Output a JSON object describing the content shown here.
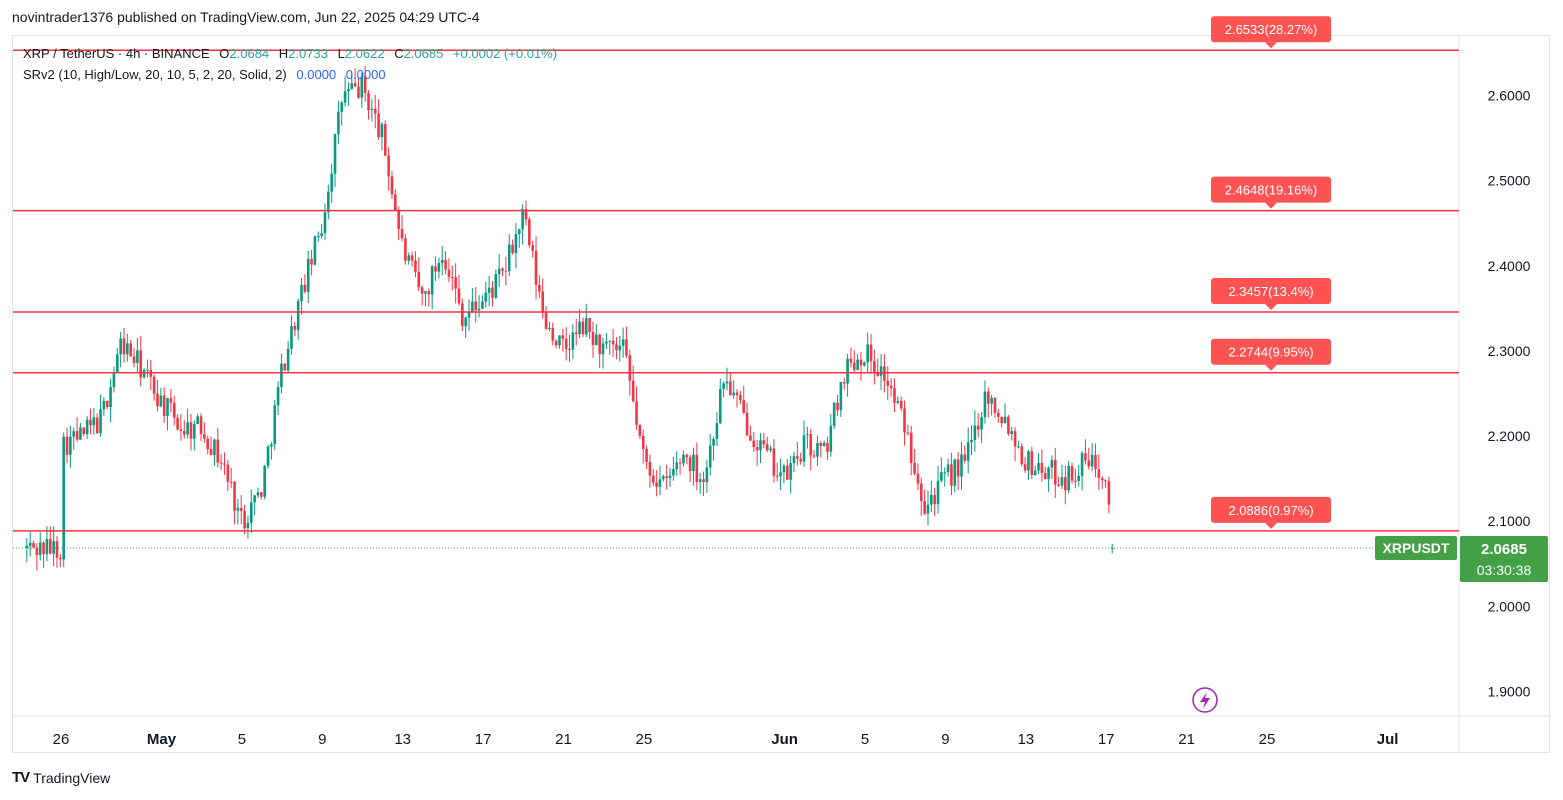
{
  "header": {
    "text": "novintrader1376 published on TradingView.com, Jun 22, 2025 04:29 UTC-4"
  },
  "legend": {
    "symbol": "XRP / TetherUS · 4h · BINANCE",
    "o_label": "O",
    "o_value": "2.0684",
    "h_label": "H",
    "h_value": "2.0733",
    "l_label": "L",
    "l_value": "2.0622",
    "c_label": "C",
    "c_value": "2.0685",
    "change": "+0.0002 (+0.01%)",
    "indicator": "SRv2 (10, High/Low, 20, 10, 5, 2, 20, Solid, 2)",
    "ind_value1": "0.0000",
    "ind_value2": "0.0000"
  },
  "footer": {
    "brand": "TradingView",
    "logo_text": "TV"
  },
  "chart_data": {
    "type": "candlestick",
    "symbol": "XRPUSDT",
    "timeframe": "4h",
    "y_axis": {
      "min": 1.85,
      "max": 2.67,
      "ticks": [
        "2.6000",
        "2.5000",
        "2.4000",
        "2.3000",
        "2.2000",
        "2.1000",
        "2.0000",
        "1.9000"
      ]
    },
    "x_axis": {
      "labels": [
        {
          "label": "26",
          "day": 0
        },
        {
          "label": "May",
          "day": 5
        },
        {
          "label": "5",
          "day": 9
        },
        {
          "label": "9",
          "day": 13
        },
        {
          "label": "13",
          "day": 17
        },
        {
          "label": "17",
          "day": 21
        },
        {
          "label": "21",
          "day": 25
        },
        {
          "label": "25",
          "day": 29
        },
        {
          "label": "Jun",
          "day": 36
        },
        {
          "label": "5",
          "day": 40
        },
        {
          "label": "9",
          "day": 44
        },
        {
          "label": "13",
          "day": 48
        },
        {
          "label": "17",
          "day": 52
        },
        {
          "label": "21",
          "day": 56
        },
        {
          "label": "25",
          "day": 60
        },
        {
          "label": "Jul",
          "day": 66
        }
      ]
    },
    "series_anchors_daily_close": [
      [
        0,
        2.19
      ],
      [
        1,
        2.2
      ],
      [
        2,
        2.22
      ],
      [
        3,
        2.31
      ],
      [
        4,
        2.28
      ],
      [
        5,
        2.24
      ],
      [
        6,
        2.21
      ],
      [
        7,
        2.21
      ],
      [
        8,
        2.17
      ],
      [
        9,
        2.1
      ],
      [
        10,
        2.14
      ],
      [
        11,
        2.28
      ],
      [
        12,
        2.37
      ],
      [
        13,
        2.45
      ],
      [
        14,
        2.6
      ],
      [
        15,
        2.61
      ],
      [
        16,
        2.55
      ],
      [
        17,
        2.42
      ],
      [
        18,
        2.36
      ],
      [
        19,
        2.42
      ],
      [
        20,
        2.34
      ],
      [
        21,
        2.36
      ],
      [
        22,
        2.39
      ],
      [
        23,
        2.46
      ],
      [
        24,
        2.34
      ],
      [
        25,
        2.3
      ],
      [
        26,
        2.33
      ],
      [
        27,
        2.3
      ],
      [
        28,
        2.3
      ],
      [
        29,
        2.17
      ],
      [
        30,
        2.14
      ],
      [
        31,
        2.18
      ],
      [
        32,
        2.15
      ],
      [
        33,
        2.27
      ],
      [
        34,
        2.22
      ],
      [
        35,
        2.18
      ],
      [
        36,
        2.15
      ],
      [
        37,
        2.19
      ],
      [
        38,
        2.18
      ],
      [
        39,
        2.28
      ],
      [
        40,
        2.3
      ],
      [
        41,
        2.27
      ],
      [
        42,
        2.21
      ],
      [
        43,
        2.12
      ],
      [
        44,
        2.15
      ],
      [
        45,
        2.17
      ],
      [
        46,
        2.25
      ],
      [
        47,
        2.22
      ],
      [
        48,
        2.17
      ],
      [
        49,
        2.16
      ],
      [
        50,
        2.15
      ],
      [
        51,
        2.17
      ],
      [
        52,
        2.16
      ],
      [
        52.45,
        2.0685
      ]
    ],
    "sr_levels": [
      {
        "price": 2.6533,
        "label": "2.6533(28.27%)"
      },
      {
        "price": 2.4648,
        "label": "2.4648(19.16%)"
      },
      {
        "price": 2.3457,
        "label": "2.3457(13.4%)"
      },
      {
        "price": 2.2744,
        "label": "2.2744(9.95%)"
      },
      {
        "price": 2.0886,
        "label": "2.0886(0.97%)"
      }
    ],
    "last_price": {
      "symbol": "XRPUSDT",
      "value": "2.0685",
      "numeric": 2.0685,
      "countdown": "03:30:38"
    },
    "colors": {
      "up": "#089981",
      "down": "#f23645",
      "sr_line": "#f23645",
      "sr_label_bg": "#ff5252",
      "price_tag": "#43a047"
    }
  }
}
